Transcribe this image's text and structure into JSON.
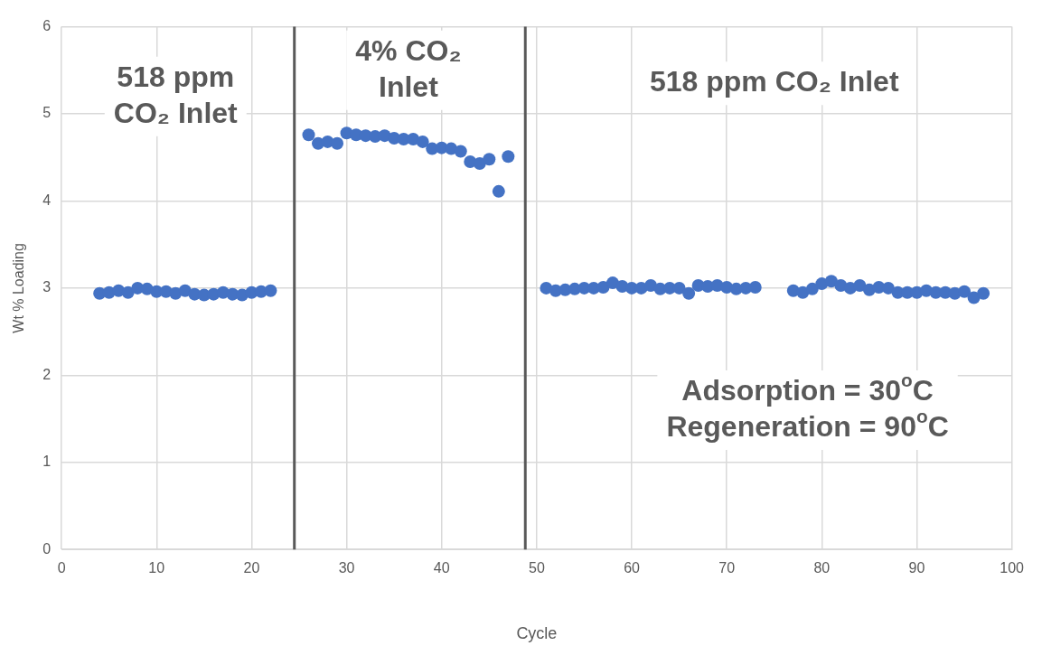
{
  "chart_data": {
    "type": "scatter",
    "xlabel": "Cycle",
    "ylabel": "Wt % Loading",
    "x": [
      4,
      5,
      6,
      7,
      8,
      9,
      10,
      11,
      12,
      13,
      14,
      15,
      16,
      17,
      18,
      19,
      20,
      21,
      22,
      26,
      27,
      28,
      29,
      30,
      31,
      32,
      33,
      34,
      35,
      36,
      37,
      38,
      39,
      40,
      41,
      42,
      43,
      44,
      45,
      46,
      47,
      51,
      52,
      53,
      54,
      55,
      56,
      57,
      58,
      59,
      60,
      61,
      62,
      63,
      64,
      65,
      66,
      67,
      68,
      69,
      70,
      71,
      72,
      73,
      77,
      78,
      79,
      80,
      81,
      82,
      83,
      84,
      85,
      86,
      87,
      88,
      89,
      90,
      91,
      92,
      93,
      94,
      95,
      96,
      97
    ],
    "series": [
      {
        "color": "#4472c4",
        "values": [
          2.94,
          2.95,
          2.97,
          2.95,
          3.0,
          2.99,
          2.96,
          2.96,
          2.94,
          2.97,
          2.93,
          2.92,
          2.93,
          2.95,
          2.93,
          2.92,
          2.95,
          2.96,
          2.97,
          4.76,
          4.66,
          4.68,
          4.66,
          4.78,
          4.76,
          4.75,
          4.74,
          4.75,
          4.72,
          4.71,
          4.71,
          4.68,
          4.6,
          4.61,
          4.6,
          4.57,
          4.45,
          4.43,
          4.48,
          4.11,
          4.51,
          3.0,
          2.97,
          2.98,
          2.99,
          3.0,
          3.0,
          3.01,
          3.06,
          3.02,
          3.0,
          3.0,
          3.03,
          2.99,
          3.0,
          3.0,
          2.94,
          3.03,
          3.02,
          3.03,
          3.01,
          2.99,
          3.0,
          3.01,
          2.97,
          2.95,
          2.99,
          3.05,
          3.08,
          3.03,
          3.0,
          3.03,
          2.98,
          3.01,
          3.0,
          2.95,
          2.95,
          2.95,
          2.97,
          2.95,
          2.95,
          2.94,
          2.96,
          2.89,
          2.94
        ]
      }
    ],
    "xlim": [
      0,
      100
    ],
    "xticks": [
      0,
      10,
      20,
      30,
      40,
      50,
      60,
      70,
      80,
      90,
      100
    ],
    "ylim": [
      0,
      6
    ],
    "yticks": [
      0,
      1,
      2,
      3,
      4,
      5,
      6
    ],
    "grid": true,
    "legend": false,
    "marker": "circle",
    "ref_lines": [
      {
        "axis": "x",
        "value": 24.5,
        "color": "#595959"
      },
      {
        "axis": "x",
        "value": 48.8,
        "color": "#595959"
      }
    ],
    "annotations": [
      "518 ppm\nCO₂ Inlet",
      "4% CO₂\nInlet",
      "518 ppm CO₂ Inlet",
      "Adsorption = 30$^{o}$C\nRegeneration = 90$^{o}$C"
    ]
  }
}
